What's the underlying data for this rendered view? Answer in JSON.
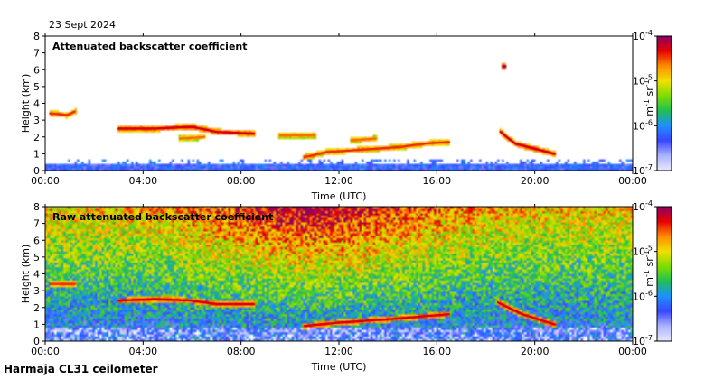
{
  "date_label": "23 Sept 2024",
  "station_label": "Harmaja CL31 ceilometer",
  "colors": {
    "colormap": [
      "#e8e8ff",
      "#aab4ff",
      "#3a46ff",
      "#1e90ff",
      "#1fbf55",
      "#7fdc00",
      "#f0e000",
      "#ff8c00",
      "#e60000",
      "#8c0064"
    ]
  },
  "chart_data": [
    {
      "type": "heatmap",
      "title": "Attenuated backscatter coefficient",
      "xlabel": "Time (UTC)",
      "ylabel": "Height (km)",
      "x_ticks": [
        "00:00",
        "04:00",
        "08:00",
        "12:00",
        "16:00",
        "20:00",
        "00:00"
      ],
      "xlim_hours": [
        0,
        24
      ],
      "y_ticks": [
        0,
        1,
        2,
        3,
        4,
        5,
        6,
        7,
        8
      ],
      "ylim": [
        0,
        8
      ],
      "colorbar": {
        "ticks": [
          "10",
          "10",
          "10",
          "10"
        ],
        "exponents": [
          "-4",
          "-5",
          "-6",
          "-7"
        ],
        "values": [
          0.0001,
          1e-05,
          1e-06,
          1e-07
        ],
        "unit": "m",
        "unit_exp1": "-1",
        "unit_mid": " sr",
        "unit_exp2": "-1",
        "scale": "log"
      },
      "noise_filtered": true,
      "cloud_layers": [
        {
          "x": [
            0.2,
            0.9,
            1.2
          ],
          "y": [
            3.4,
            3.3,
            3.5
          ],
          "level": 0.85
        },
        {
          "x": [
            3.0,
            4.5,
            6.0,
            7.0,
            8.5
          ],
          "y": [
            2.5,
            2.5,
            2.6,
            2.3,
            2.2
          ],
          "level": 0.9
        },
        {
          "x": [
            5.5,
            6.5
          ],
          "y": [
            1.9,
            2.0
          ],
          "level": 0.8
        },
        {
          "x": [
            9.6,
            11.0
          ],
          "y": [
            2.1,
            2.1
          ],
          "level": 0.8
        },
        {
          "x": [
            10.6,
            11.5,
            12.5,
            13.5,
            14.5,
            15.5,
            16.5
          ],
          "y": [
            0.8,
            1.1,
            1.2,
            1.3,
            1.4,
            1.6,
            1.7
          ],
          "level": 0.85
        },
        {
          "x": [
            12.5,
            13.5
          ],
          "y": [
            1.8,
            1.9
          ],
          "level": 0.8
        },
        {
          "x": [
            18.6,
            19.2,
            20.0,
            20.8
          ],
          "y": [
            2.3,
            1.6,
            1.3,
            1.0
          ],
          "level": 0.9
        },
        {
          "x": [
            18.7,
            18.8
          ],
          "y": [
            6.2,
            6.2
          ],
          "level": 0.95
        }
      ],
      "surface_layer_km": 0.4
    },
    {
      "type": "heatmap",
      "title": "Raw attenuated backscatter coefficient",
      "xlabel": "Time (UTC)",
      "ylabel": "Height (km)",
      "x_ticks": [
        "00:00",
        "04:00",
        "08:00",
        "12:00",
        "16:00",
        "20:00",
        "00:00"
      ],
      "xlim_hours": [
        0,
        24
      ],
      "y_ticks": [
        0,
        1,
        2,
        3,
        4,
        5,
        6,
        7,
        8
      ],
      "ylim": [
        0,
        8
      ],
      "colorbar": {
        "ticks": [
          "10",
          "10",
          "10",
          "10"
        ],
        "exponents": [
          "-4",
          "-5",
          "-6",
          "-7"
        ],
        "values": [
          0.0001,
          1e-05,
          1e-06,
          1e-07
        ],
        "unit": "m",
        "unit_exp1": "-1",
        "unit_mid": " sr",
        "unit_exp2": "-1",
        "scale": "log"
      },
      "noise_filtered": false,
      "cloud_layers": [
        {
          "x": [
            0.2,
            1.2
          ],
          "y": [
            3.4,
            3.4
          ],
          "level": 0.85
        },
        {
          "x": [
            3.0,
            4.5,
            6.0,
            7.0,
            8.5
          ],
          "y": [
            2.4,
            2.5,
            2.4,
            2.2,
            2.2
          ],
          "level": 0.9
        },
        {
          "x": [
            10.6,
            12.0,
            14.0,
            16.5
          ],
          "y": [
            0.9,
            1.1,
            1.3,
            1.6
          ],
          "level": 0.9
        },
        {
          "x": [
            18.5,
            19.5,
            20.8
          ],
          "y": [
            2.3,
            1.6,
            1.0
          ],
          "level": 0.9
        }
      ],
      "surface_layer_km": 0.8
    }
  ]
}
